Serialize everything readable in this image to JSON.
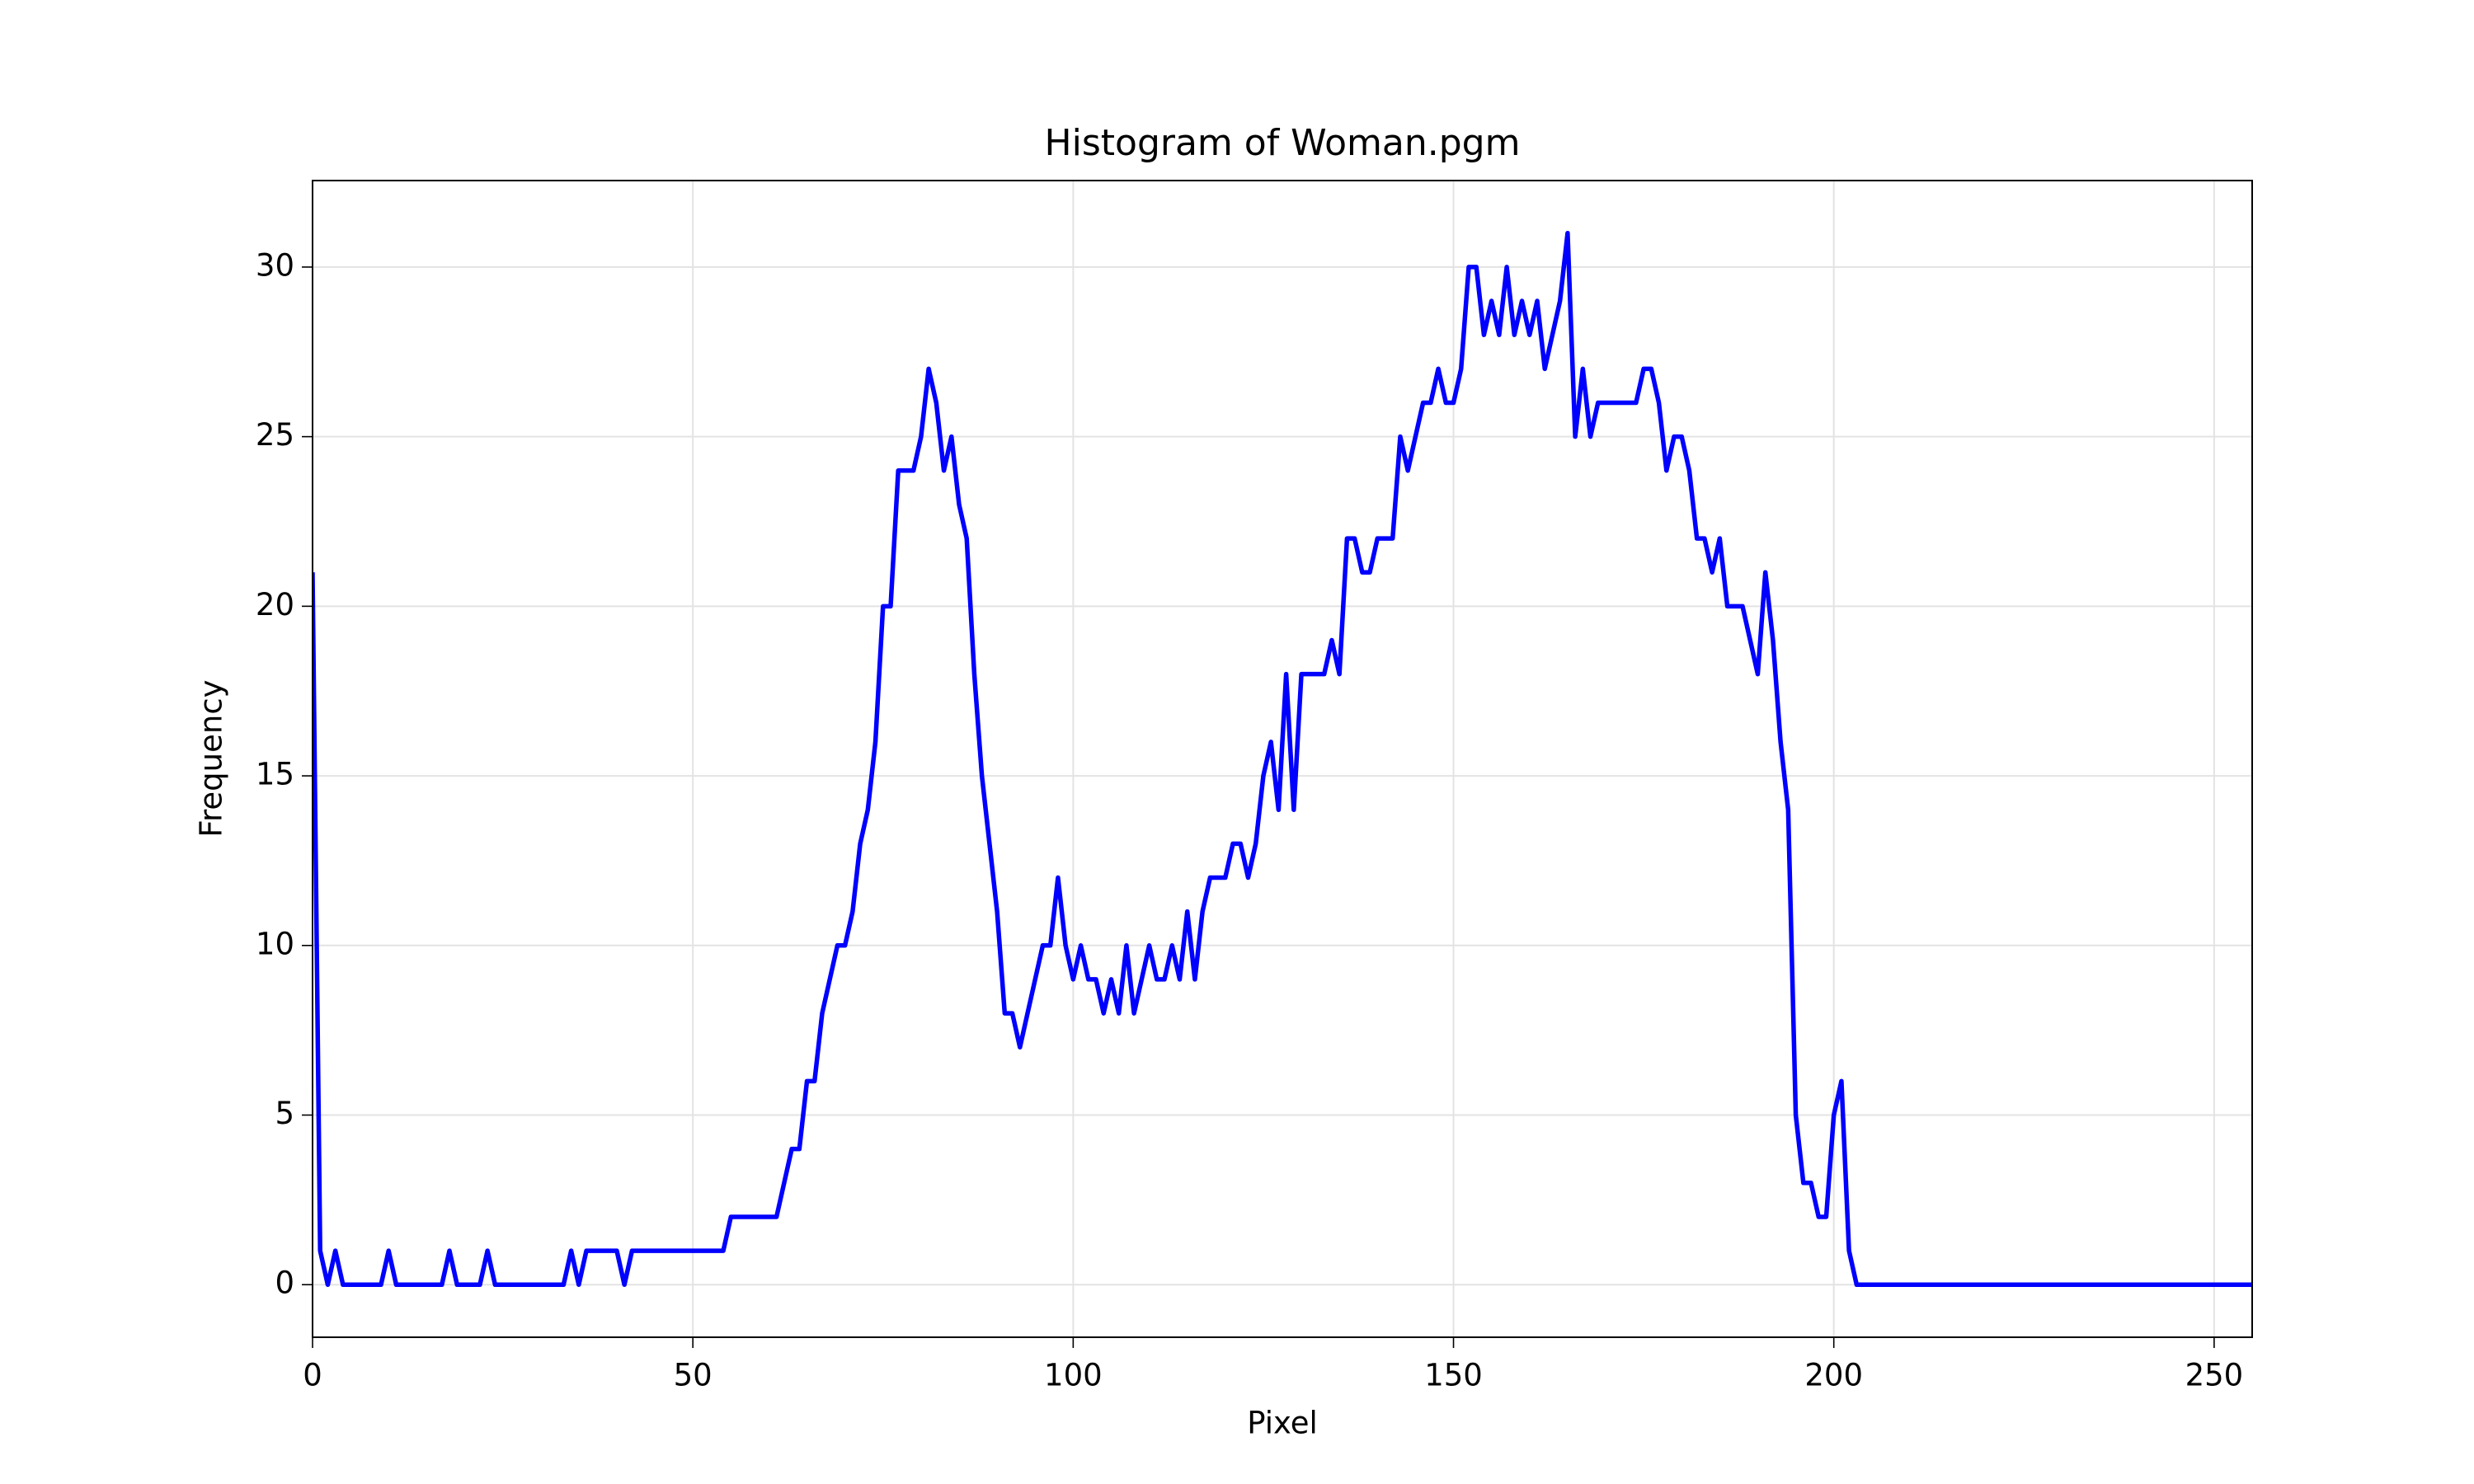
{
  "chart_data": {
    "type": "line",
    "title": "Histogram of Woman.pgm",
    "xlabel": "Pixel",
    "ylabel": "Frequency",
    "series": [
      {
        "color": "#0000ff",
        "values": [
          21,
          1,
          0,
          1,
          0,
          0,
          0,
          0,
          0,
          0,
          1,
          0,
          0,
          0,
          0,
          0,
          0,
          0,
          1,
          0,
          0,
          0,
          0,
          1,
          0,
          0,
          0,
          0,
          0,
          0,
          0,
          0,
          0,
          0,
          1,
          0,
          1,
          1,
          1,
          1,
          1,
          0,
          1,
          1,
          1,
          1,
          1,
          1,
          1,
          1,
          1,
          1,
          1,
          1,
          1,
          2,
          2,
          2,
          2,
          2,
          2,
          2,
          3,
          4,
          4,
          6,
          6,
          8,
          9,
          10,
          10,
          11,
          13,
          14,
          16,
          20,
          20,
          24,
          24,
          24,
          25,
          27,
          26,
          24,
          25,
          23,
          22,
          18,
          15,
          13,
          11,
          8,
          8,
          7,
          8,
          9,
          10,
          10,
          12,
          10,
          9,
          10,
          9,
          9,
          8,
          9,
          8,
          10,
          8,
          9,
          10,
          9,
          9,
          10,
          9,
          11,
          9,
          11,
          12,
          12,
          12,
          13,
          13,
          12,
          13,
          15,
          16,
          14,
          18,
          14,
          18,
          18,
          18,
          18,
          19,
          18,
          22,
          22,
          21,
          21,
          22,
          22,
          22,
          25,
          24,
          25,
          26,
          26,
          27,
          26,
          26,
          27,
          30,
          30,
          28,
          29,
          28,
          30,
          28,
          29,
          28,
          29,
          27,
          28,
          29,
          31,
          25,
          27,
          25,
          26,
          26,
          26,
          26,
          26,
          26,
          27,
          27,
          26,
          24,
          25,
          25,
          24,
          22,
          22,
          21,
          22,
          20,
          20,
          20,
          19,
          18,
          21,
          19,
          16,
          14,
          5,
          3,
          3,
          2,
          2,
          5,
          6,
          1,
          0,
          0,
          0,
          0,
          0,
          0,
          0,
          0,
          0,
          0,
          0,
          0,
          0,
          0,
          0,
          0,
          0,
          0,
          0,
          0,
          0,
          0,
          0,
          0,
          0,
          0,
          0,
          0,
          0,
          0,
          0,
          0,
          0,
          0,
          0,
          0,
          0,
          0,
          0,
          0,
          0,
          0,
          0,
          0,
          0,
          0,
          0,
          0,
          0,
          0,
          0,
          0,
          0
        ]
      }
    ],
    "xlim": [
      0,
      255
    ],
    "xticks": [
      0,
      50,
      100,
      150,
      200,
      250
    ],
    "ylim": [
      -1.55,
      32.55
    ],
    "yticks": [
      0,
      5,
      10,
      15,
      20,
      25,
      30
    ],
    "grid": true
  }
}
